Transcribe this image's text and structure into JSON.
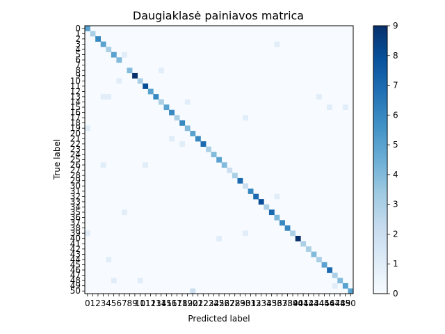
{
  "chart_data": {
    "type": "heatmap",
    "title": "Daugiaklasė painiavos matrica",
    "xlabel": "Predicted label",
    "ylabel": "True label",
    "classes": [
      "0",
      "1",
      "2",
      "3",
      "4",
      "5",
      "6",
      "7",
      "8",
      "9",
      "10",
      "11",
      "12",
      "13",
      "14",
      "15",
      "16",
      "17",
      "18",
      "19",
      "20",
      "21",
      "22",
      "23",
      "24",
      "25",
      "26",
      "27",
      "28",
      "29",
      "30",
      "31",
      "32",
      "33",
      "34",
      "35",
      "36",
      "37",
      "38",
      "39",
      "40",
      "41",
      "42",
      "43",
      "44",
      "45",
      "46",
      "47",
      "48",
      "49",
      "50"
    ],
    "colormap": "Blues",
    "colorbar": {
      "min": 0,
      "max": 9,
      "ticks": [
        "0",
        "1",
        "2",
        "3",
        "4",
        "5",
        "6",
        "7",
        "8",
        "9"
      ]
    },
    "diagonal": [
      5,
      3,
      6,
      5,
      3,
      5,
      4,
      0,
      4,
      9,
      3,
      8,
      5,
      6,
      3,
      5,
      6,
      3,
      6,
      4,
      5,
      6,
      7,
      3,
      4,
      5,
      4,
      2,
      3,
      7,
      2,
      6,
      7,
      8,
      3,
      7,
      4,
      6,
      6,
      3,
      9,
      3,
      3,
      4,
      3,
      5,
      7,
      3,
      4,
      5,
      5
    ],
    "off_diagonal": [
      {
        "true": 3,
        "pred": 36,
        "value": 1
      },
      {
        "true": 5,
        "pred": 7,
        "value": 1
      },
      {
        "true": 8,
        "pred": 14,
        "value": 1
      },
      {
        "true": 10,
        "pred": 6,
        "value": 1
      },
      {
        "true": 13,
        "pred": 3,
        "value": 1
      },
      {
        "true": 13,
        "pred": 4,
        "value": 1
      },
      {
        "true": 13,
        "pred": 44,
        "value": 1
      },
      {
        "true": 14,
        "pred": 19,
        "value": 1
      },
      {
        "true": 15,
        "pred": 46,
        "value": 1
      },
      {
        "true": 15,
        "pred": 49,
        "value": 1
      },
      {
        "true": 17,
        "pred": 30,
        "value": 1
      },
      {
        "true": 19,
        "pred": 0,
        "value": 1
      },
      {
        "true": 21,
        "pred": 16,
        "value": 1
      },
      {
        "true": 22,
        "pred": 18,
        "value": 1
      },
      {
        "true": 26,
        "pred": 3,
        "value": 1
      },
      {
        "true": 26,
        "pred": 11,
        "value": 1
      },
      {
        "true": 32,
        "pred": 36,
        "value": 1
      },
      {
        "true": 35,
        "pred": 7,
        "value": 1
      },
      {
        "true": 39,
        "pred": 0,
        "value": 1
      },
      {
        "true": 39,
        "pred": 30,
        "value": 1
      },
      {
        "true": 40,
        "pred": 25,
        "value": 1
      },
      {
        "true": 44,
        "pred": 4,
        "value": 1
      },
      {
        "true": 48,
        "pred": 5,
        "value": 1
      },
      {
        "true": 48,
        "pred": 10,
        "value": 1
      },
      {
        "true": 49,
        "pred": 47,
        "value": 1
      },
      {
        "true": 50,
        "pred": 20,
        "value": 2
      }
    ]
  }
}
